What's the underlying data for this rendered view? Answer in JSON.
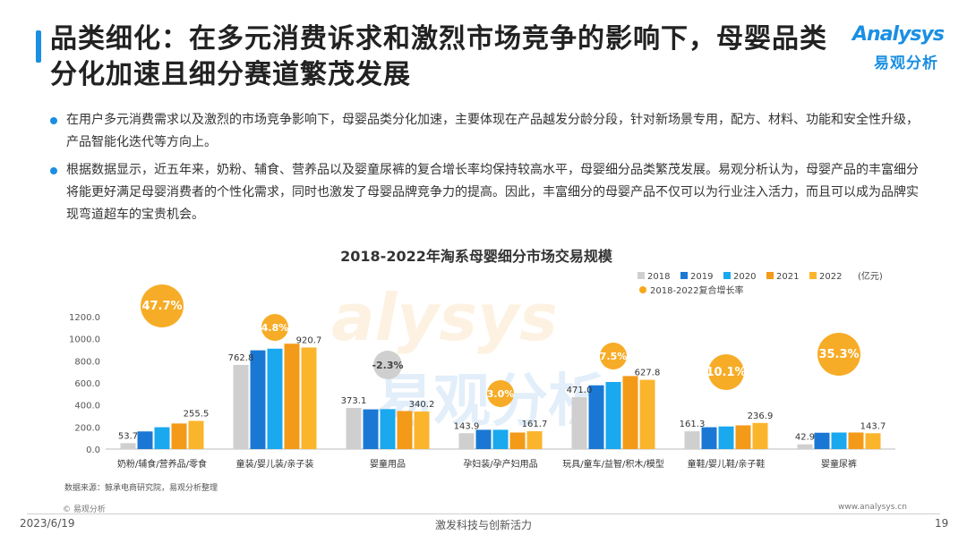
{
  "header": {
    "title": "品类细化：在多元消费诉求和激烈市场竞争的影响下，母婴品类分化加速且细分赛道繁茂发展",
    "logo_word": "Analysys",
    "logo_cn": "易观分析"
  },
  "bullets": [
    "在用户多元消费需求以及激烈的市场竞争影响下，母婴品类分化加速，主要体现在产品越发分龄分段，针对新场景专用，配方、材料、功能和安全性升级，产品智能化迭代等方向上。",
    "根据数据显示，近五年来，奶粉、辅食、营养品以及婴童尿裤的复合增长率均保持较高水平，母婴细分品类繁茂发展。易观分析认为，母婴产品的丰富细分将能更好满足母婴消费者的个性化需求，同时也激发了母婴品牌竞争力的提高。因此，丰富细分的母婴产品不仅可以为行业注入活力，而且可以成为品牌实现弯道超车的宝贵机会。"
  ],
  "chart_data": {
    "type": "bar",
    "title": "2018-2022年淘系母婴细分市场交易规模",
    "unit": "(亿元)",
    "categories": [
      "奶粉/辅食/营养品/零食",
      "童装/婴儿装/亲子装",
      "婴童用品",
      "孕妇装/孕产妇用品",
      "玩具/童车/益智/积木/模型",
      "童鞋/婴儿鞋/亲子鞋",
      "婴童尿裤"
    ],
    "series": [
      {
        "name": "2018",
        "color": "#cfcfcf",
        "values": [
          53.7,
          762.8,
          373.1,
          143.9,
          471.0,
          161.3,
          42.9
        ]
      },
      {
        "name": "2019",
        "color": "#1a78d4",
        "values": [
          160,
          895,
          360,
          175,
          578,
          198,
          148
        ]
      },
      {
        "name": "2020",
        "color": "#1aa8ef",
        "values": [
          198,
          910,
          362,
          175,
          608,
          205,
          150
        ]
      },
      {
        "name": "2021",
        "color": "#f39a18",
        "values": [
          232,
          955,
          345,
          150,
          662,
          215,
          150
        ]
      },
      {
        "name": "2022",
        "color": "#fbb52c",
        "values": [
          255.5,
          920.7,
          340.2,
          161.7,
          627.8,
          236.9,
          143.7
        ]
      }
    ],
    "labels_first": [
      "53.7",
      "762.8",
      "373.1",
      "143.9",
      "471.0",
      "161.3",
      "42.9"
    ],
    "labels_last": [
      "255.5",
      "920.7",
      "340.2",
      "161.7",
      "627.8",
      "236.9",
      "143.7"
    ],
    "cagr_legend": "2018-2022复合增长率",
    "cagr": [
      "47.7%",
      "4.8%",
      "-2.3%",
      "3.0%",
      "7.5%",
      "10.1%",
      "35.3%"
    ],
    "cagr_color": "#f7a81b",
    "cagr_negative_color": "#cccccc",
    "yticks": [
      "0.0",
      "200.0",
      "400.0",
      "600.0",
      "800.0",
      "1000.0",
      "1200.0"
    ],
    "ylim": [
      0,
      1200
    ]
  },
  "source": "数据来源：鲸承电商研究院，易观分析整理",
  "footer": {
    "logo_text": "© 易观分析",
    "url": "www.analysys.cn",
    "date": "2023/6/19",
    "slogan": "激发科技与创新活力",
    "page": "19"
  }
}
